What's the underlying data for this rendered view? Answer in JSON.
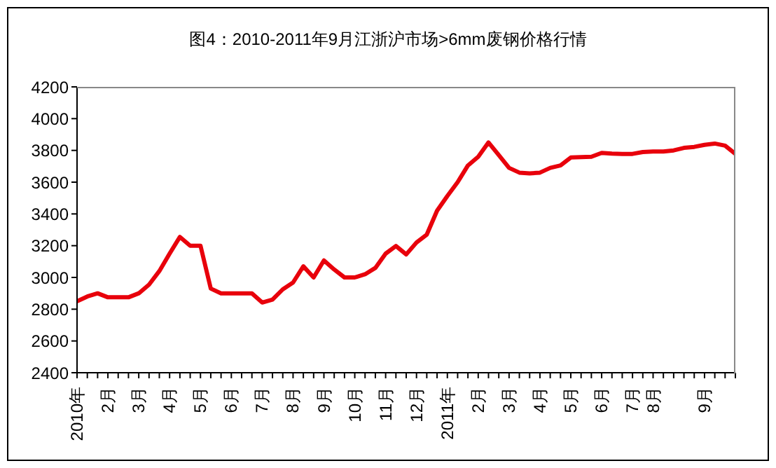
{
  "chart_data": {
    "type": "line",
    "title": "图4：2010-2011年9月江浙沪市场>6mm废钢价格行情",
    "categories": [
      "2010年",
      null,
      null,
      "2月",
      null,
      null,
      "3月",
      null,
      null,
      "4月",
      null,
      null,
      "5月",
      null,
      null,
      "6月",
      null,
      null,
      "7月",
      null,
      null,
      "8月",
      null,
      null,
      "9月",
      null,
      null,
      "10月",
      null,
      null,
      "11月",
      null,
      null,
      "12月",
      null,
      null,
      "2011年",
      null,
      null,
      "2月",
      null,
      null,
      "3月",
      null,
      null,
      "4月",
      null,
      null,
      "5月",
      null,
      null,
      "6月",
      null,
      null,
      "7月",
      null,
      "8月",
      null,
      null,
      null,
      null,
      "9月",
      null,
      null,
      null
    ],
    "values": [
      2850,
      2880,
      2900,
      2875,
      2875,
      2875,
      2900,
      2955,
      3040,
      3150,
      3255,
      3200,
      3200,
      2930,
      2900,
      2900,
      2900,
      2900,
      2842,
      2860,
      2925,
      2968,
      3070,
      3000,
      3107,
      3050,
      3000,
      3000,
      3020,
      3060,
      3150,
      3198,
      3145,
      3220,
      3270,
      3420,
      3513,
      3600,
      3705,
      3760,
      3850,
      3770,
      3690,
      3660,
      3655,
      3660,
      3690,
      3705,
      3755,
      3758,
      3760,
      3784,
      3780,
      3778,
      3778,
      3790,
      3793,
      3793,
      3800,
      3816,
      3822,
      3835,
      3843,
      3830,
      3778
    ],
    "color": "#e8000b",
    "ylim": [
      2400,
      4200
    ],
    "yticks": [
      2400,
      2600,
      2800,
      3000,
      3200,
      3400,
      3600,
      3800,
      4000,
      4200
    ]
  }
}
